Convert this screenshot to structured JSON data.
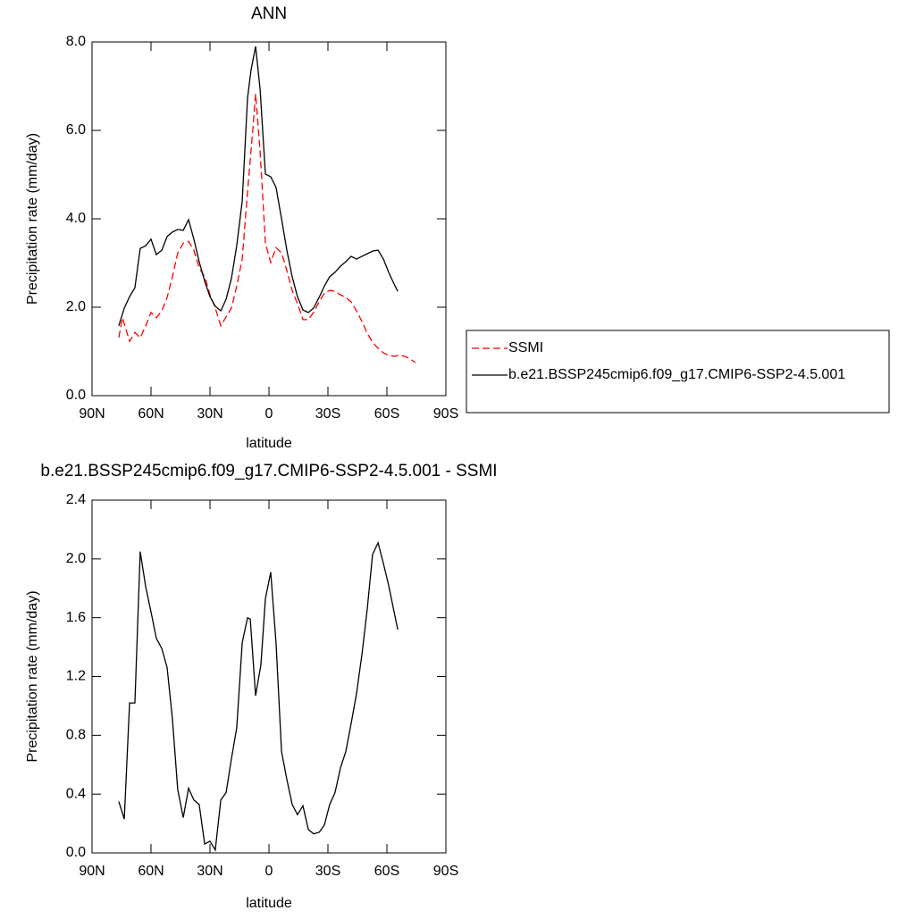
{
  "chart_data": [
    {
      "type": "line",
      "title": "ANN",
      "xlabel": "latitude",
      "ylabel": "Precipitation rate (mm/day)",
      "xlim": [
        90,
        -90
      ],
      "xticks": [
        {
          "value": 90,
          "label": "90N"
        },
        {
          "value": 60,
          "label": "60N"
        },
        {
          "value": 30,
          "label": "30N"
        },
        0,
        {
          "value": -30,
          "label": "30S"
        },
        {
          "value": -60,
          "label": "60S"
        },
        {
          "value": -90,
          "label": "90S"
        }
      ],
      "ylim": [
        0,
        8
      ],
      "yticks": [
        {
          "value": 0,
          "label": "0.0"
        },
        {
          "value": 2,
          "label": "2.0"
        },
        {
          "value": 4,
          "label": "4.0"
        },
        {
          "value": 6,
          "label": "6.0"
        },
        {
          "value": 8,
          "label": "8.0"
        }
      ],
      "legend": "right",
      "series": [
        {
          "name": "SSMI",
          "color": "#ff0000",
          "dash": true,
          "x": [
            76.4,
            74.5,
            70.9,
            68.2,
            65.5,
            62.7,
            60,
            57.3,
            54.5,
            51.8,
            49.1,
            46.4,
            43.6,
            40.9,
            38.2,
            35.5,
            32.7,
            30,
            27.3,
            24.5,
            21.8,
            19.1,
            16.4,
            13.6,
            10.9,
            8.2,
            6.8,
            4.5,
            1.8,
            -0.9,
            -3.6,
            -6.4,
            -9.1,
            -11.8,
            -14.5,
            -17.3,
            -20,
            -22.7,
            -25.5,
            -28.2,
            -30.9,
            -33.6,
            -36.4,
            -39.1,
            -41.8,
            -44.5,
            -47.3,
            -50,
            -52.7,
            -55.5,
            -58.2,
            -60.9,
            -63.6,
            -66.4,
            -69.1,
            -71.8,
            -74.5
          ],
          "values": [
            1.31,
            1.76,
            1.23,
            1.43,
            1.31,
            1.58,
            1.88,
            1.76,
            1.92,
            2.22,
            2.69,
            3.23,
            3.45,
            3.49,
            3.29,
            2.89,
            2.69,
            2.28,
            1.98,
            1.58,
            1.78,
            1.98,
            2.48,
            3.09,
            4.61,
            6.02,
            6.83,
            5.52,
            3.45,
            3.01,
            3.35,
            3.23,
            2.83,
            2.38,
            2.08,
            1.72,
            1.72,
            1.88,
            2.12,
            2.32,
            2.38,
            2.36,
            2.28,
            2.22,
            2.12,
            1.92,
            1.68,
            1.41,
            1.21,
            1.07,
            0.97,
            0.91,
            0.89,
            0.91,
            0.89,
            0.83,
            0.75
          ]
        },
        {
          "name": "b.e21.BSSP245cmip6.f09_g17.CMIP6-SSP2-4.5.001",
          "color": "#000000",
          "x": [
            76.4,
            73.6,
            70.9,
            68.2,
            65.5,
            62.7,
            60,
            57.3,
            54.5,
            51.8,
            49.1,
            46.4,
            43.6,
            40.9,
            38.2,
            35.5,
            32.7,
            30,
            27.3,
            24.5,
            21.8,
            19.1,
            16.4,
            13.6,
            10.9,
            9.1,
            6.8,
            4.5,
            1.8,
            -0.9,
            -3.6,
            -6.4,
            -9.1,
            -11.8,
            -14.5,
            -17.3,
            -20,
            -22.7,
            -25.5,
            -28.2,
            -30.9,
            -33.6,
            -36.4,
            -39.1,
            -41.8,
            -44.5,
            -47.3,
            -50,
            -52.7,
            -55.5,
            -58.2,
            -60.9,
            -63.6,
            -65.5
          ],
          "values": [
            1.58,
            1.98,
            2.24,
            2.44,
            3.33,
            3.39,
            3.54,
            3.19,
            3.29,
            3.6,
            3.7,
            3.76,
            3.74,
            3.98,
            3.54,
            3.03,
            2.59,
            2.24,
            2.02,
            1.92,
            2.18,
            2.65,
            3.39,
            4.4,
            6.73,
            7.37,
            7.9,
            6.93,
            5.01,
            4.95,
            4.71,
            4.0,
            3.29,
            2.69,
            2.24,
            1.94,
            1.88,
            1.98,
            2.22,
            2.48,
            2.69,
            2.79,
            2.93,
            3.03,
            3.15,
            3.09,
            3.15,
            3.21,
            3.27,
            3.29,
            3.09,
            2.79,
            2.53,
            2.36
          ]
        }
      ]
    },
    {
      "type": "line",
      "title": "b.e21.BSSP245cmip6.f09_g17.CMIP6-SSP2-4.5.001 - SSMI",
      "xlabel": "latitude",
      "ylabel": "Precipitation rate (mm/day)",
      "xlim": [
        90,
        -90
      ],
      "xticks": [
        {
          "value": 90,
          "label": "90N"
        },
        {
          "value": 60,
          "label": "60N"
        },
        {
          "value": 30,
          "label": "30N"
        },
        0,
        {
          "value": -30,
          "label": "30S"
        },
        {
          "value": -60,
          "label": "60S"
        },
        {
          "value": -90,
          "label": "90S"
        }
      ],
      "ylim": [
        0,
        2.4
      ],
      "yticks": [
        {
          "value": 0,
          "label": "0.0"
        },
        {
          "value": 0.4,
          "label": "0.4"
        },
        {
          "value": 0.8,
          "label": "0.8"
        },
        {
          "value": 1.2,
          "label": "1.2"
        },
        {
          "value": 1.6,
          "label": "1.6"
        },
        {
          "value": 2.0,
          "label": "2.0"
        },
        {
          "value": 2.4,
          "label": "2.4"
        }
      ],
      "series": [
        {
          "color": "#000000",
          "x": [
            76.4,
            73.6,
            70.9,
            68.2,
            65.5,
            62.7,
            60,
            57.3,
            54.5,
            51.8,
            49.1,
            46.4,
            43.6,
            40.9,
            38.2,
            35.5,
            32.7,
            30,
            27.3,
            24.5,
            21.8,
            19.1,
            16.4,
            13.6,
            10.9,
            9.5,
            6.8,
            4.1,
            1.8,
            -0.9,
            -3.6,
            -6.4,
            -9.1,
            -11.8,
            -14.5,
            -17.3,
            -20,
            -22.7,
            -25.5,
            -28.2,
            -30.9,
            -33.6,
            -36.4,
            -39.1,
            -41.8,
            -44.5,
            -47.3,
            -50,
            -52.7,
            -55.5,
            -58.2,
            -60.9,
            -65.5
          ],
          "values": [
            0.35,
            0.23,
            1.02,
            1.02,
            2.05,
            1.81,
            1.64,
            1.46,
            1.39,
            1.26,
            0.91,
            0.43,
            0.24,
            0.44,
            0.36,
            0.33,
            0.06,
            0.08,
            0.02,
            0.36,
            0.41,
            0.64,
            0.85,
            1.43,
            1.6,
            1.59,
            1.07,
            1.28,
            1.73,
            1.91,
            1.43,
            0.69,
            0.5,
            0.33,
            0.26,
            0.32,
            0.16,
            0.13,
            0.14,
            0.19,
            0.33,
            0.41,
            0.58,
            0.69,
            0.88,
            1.08,
            1.35,
            1.66,
            2.03,
            2.11,
            1.97,
            1.82,
            1.52
          ]
        }
      ]
    }
  ]
}
